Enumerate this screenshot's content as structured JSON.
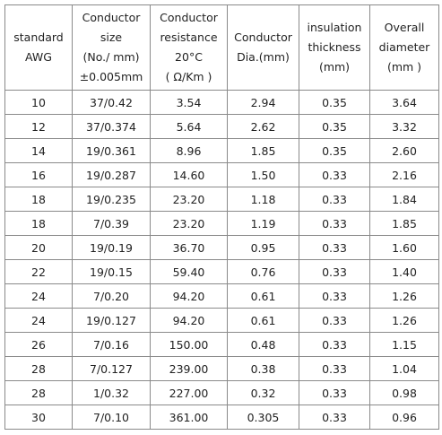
{
  "table": {
    "header": [
      [
        "standard",
        "AWG"
      ],
      [
        "Conductor",
        "size",
        "(No./ mm)",
        "±0.005mm"
      ],
      [
        "Conductor",
        "resistance",
        "20°C",
        "( Ω/Km )"
      ],
      [
        "Conductor",
        "Dia.(mm)"
      ],
      [
        "insulation",
        "thickness",
        "(mm)"
      ],
      [
        "Overall",
        "diameter",
        "(mm )"
      ]
    ],
    "rows": [
      [
        "10",
        "37/0.42",
        "3.54",
        "2.94",
        "0.35",
        "3.64"
      ],
      [
        "12",
        "37/0.374",
        "5.64",
        "2.62",
        "0.35",
        "3.32"
      ],
      [
        "14",
        "19/0.361",
        "8.96",
        "1.85",
        "0.35",
        "2.60"
      ],
      [
        "16",
        "19/0.287",
        "14.60",
        "1.50",
        "0.33",
        "2.16"
      ],
      [
        "18",
        "19/0.235",
        "23.20",
        "1.18",
        "0.33",
        "1.84"
      ],
      [
        "18",
        "7/0.39",
        "23.20",
        "1.19",
        "0.33",
        "1.85"
      ],
      [
        "20",
        "19/0.19",
        "36.70",
        "0.95",
        "0.33",
        "1.60"
      ],
      [
        "22",
        "19/0.15",
        "59.40",
        "0.76",
        "0.33",
        "1.40"
      ],
      [
        "24",
        "7/0.20",
        "94.20",
        "0.61",
        "0.33",
        "1.26"
      ],
      [
        "24",
        "19/0.127",
        "94.20",
        "0.61",
        "0.33",
        "1.26"
      ],
      [
        "26",
        "7/0.16",
        "150.00",
        "0.48",
        "0.33",
        "1.15"
      ],
      [
        "28",
        "7/0.127",
        "239.00",
        "0.38",
        "0.33",
        "1.04"
      ],
      [
        "28",
        "1/0.32",
        "227.00",
        "0.32",
        "0.33",
        "0.98"
      ],
      [
        "30",
        "7/0.10",
        "361.00",
        "0.305",
        "0.33",
        "0.96"
      ]
    ]
  }
}
